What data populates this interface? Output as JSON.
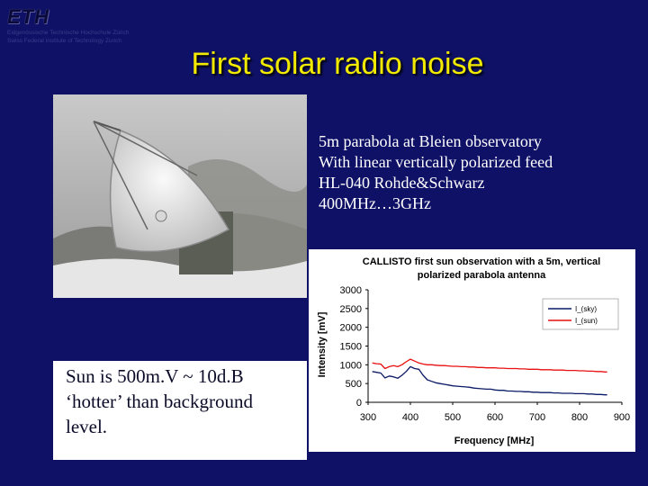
{
  "logo": {
    "word": "ETH",
    "line1": "Eidgenössische Technische Hochschule Zürich",
    "line2": "Swiss Federal Institute of Technology Zurich"
  },
  "slide_title": "First solar radio noise",
  "description": [
    "5m parabola at Bleien observatory",
    "With linear vertically polarized feed",
    "HL-040 Rohde&Schwarz",
    "400MHz…3GHz"
  ],
  "caption": [
    "Sun is 500m.V ~ 10d.B",
    "‘hotter’ than background",
    "level."
  ],
  "colors": {
    "background": "#0f1166",
    "title": "#f2e900",
    "sky_series": "#0a1a66",
    "sun_series": "#e81010"
  },
  "chart_data": {
    "type": "line",
    "title_lines": [
      "CALLISTO first sun observation with a 5m, vertical",
      "polarized parabola antenna"
    ],
    "xlabel": "Frequency [MHz]",
    "ylabel": "Intensity [mV]",
    "xlim": [
      300,
      900
    ],
    "ylim": [
      0,
      3000
    ],
    "xticks": [
      300,
      400,
      500,
      600,
      700,
      800,
      900
    ],
    "yticks": [
      0,
      500,
      1000,
      1500,
      2000,
      2500,
      3000
    ],
    "grid": false,
    "legend_position": "top-right",
    "series": [
      {
        "name": "I_(sky)",
        "color": "#0a1a66",
        "x": [
          310,
          320,
          330,
          340,
          350,
          360,
          370,
          380,
          390,
          400,
          410,
          420,
          430,
          440,
          450,
          460,
          470,
          480,
          490,
          500,
          510,
          520,
          530,
          540,
          550,
          560,
          570,
          580,
          590,
          600,
          610,
          620,
          630,
          640,
          650,
          660,
          670,
          680,
          690,
          700,
          710,
          720,
          730,
          740,
          750,
          760,
          770,
          780,
          790,
          800,
          810,
          820,
          830,
          840,
          850,
          860,
          865
        ],
        "y": [
          820,
          800,
          780,
          650,
          700,
          680,
          640,
          720,
          820,
          950,
          900,
          880,
          720,
          600,
          560,
          520,
          500,
          480,
          460,
          440,
          430,
          420,
          410,
          400,
          380,
          370,
          360,
          350,
          350,
          330,
          320,
          320,
          300,
          300,
          290,
          290,
          280,
          280,
          270,
          270,
          260,
          260,
          260,
          250,
          250,
          240,
          240,
          240,
          230,
          230,
          230,
          220,
          220,
          210,
          210,
          200,
          200
        ]
      },
      {
        "name": "I_(sun)",
        "color": "#e81010",
        "x": [
          310,
          320,
          330,
          340,
          350,
          360,
          370,
          380,
          390,
          400,
          410,
          420,
          430,
          440,
          450,
          460,
          470,
          480,
          490,
          500,
          510,
          520,
          530,
          540,
          550,
          560,
          570,
          580,
          590,
          600,
          610,
          620,
          630,
          640,
          650,
          660,
          670,
          680,
          690,
          700,
          710,
          720,
          730,
          740,
          750,
          760,
          770,
          780,
          790,
          800,
          810,
          820,
          830,
          840,
          850,
          860,
          865
        ],
        "y": [
          1050,
          1030,
          1020,
          900,
          950,
          980,
          950,
          1000,
          1080,
          1150,
          1100,
          1050,
          1020,
          1000,
          1000,
          990,
          980,
          980,
          970,
          960,
          960,
          950,
          950,
          940,
          940,
          930,
          930,
          920,
          920,
          920,
          910,
          910,
          900,
          900,
          900,
          890,
          890,
          880,
          880,
          880,
          870,
          870,
          870,
          860,
          860,
          860,
          850,
          850,
          850,
          840,
          840,
          830,
          830,
          820,
          820,
          810,
          810
        ]
      }
    ]
  }
}
